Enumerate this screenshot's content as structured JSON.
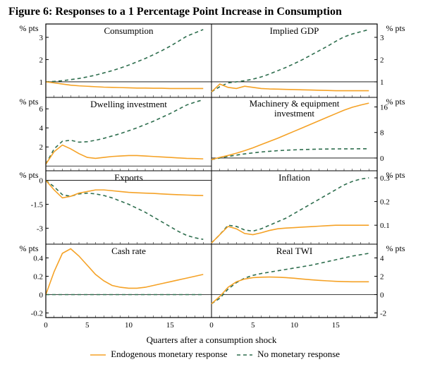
{
  "figure_title": "Figure 6: Responses to a 1 Percentage Point Increase in Consumption",
  "x_axis_label": "Quarters after a consumption shock",
  "x_ticks": [
    0,
    5,
    10,
    15
  ],
  "x_domain": [
    0,
    20
  ],
  "y_unit_left": "% pts",
  "y_unit_right": "% pts",
  "colors": {
    "endogenous": "#f5a226",
    "no_monetary": "#2e6e4e",
    "axis": "#000000",
    "panel_border": "#000000",
    "background": "#ffffff",
    "baseline": "#000000"
  },
  "line_style": {
    "endogenous": {
      "width": 1.6,
      "dash": ""
    },
    "no_monetary": {
      "width": 1.6,
      "dash": "5,4"
    }
  },
  "legend": {
    "endogenous": "Endogenous monetary response",
    "no_monetary": "No monetary response"
  },
  "panels": [
    {
      "title": "Consumption",
      "baseline": 1,
      "y_ticks": [
        1,
        2,
        3
      ],
      "y_domain": [
        0.3,
        3.6
      ],
      "y_side": "left",
      "series": {
        "endogenous": [
          1.0,
          0.95,
          0.9,
          0.85,
          0.82,
          0.8,
          0.78,
          0.76,
          0.75,
          0.74,
          0.73,
          0.72,
          0.72,
          0.71,
          0.71,
          0.7,
          0.7,
          0.7,
          0.7,
          0.7
        ],
        "no_monetary": [
          1.0,
          1.02,
          1.05,
          1.1,
          1.15,
          1.22,
          1.3,
          1.4,
          1.5,
          1.62,
          1.75,
          1.9,
          2.05,
          2.22,
          2.4,
          2.6,
          2.82,
          3.05,
          3.2,
          3.35
        ]
      }
    },
    {
      "title": "Implied GDP",
      "baseline": 1,
      "y_ticks": [
        1,
        2,
        3
      ],
      "y_domain": [
        0.3,
        3.6
      ],
      "y_side": "right",
      "series": {
        "endogenous": [
          0.55,
          0.9,
          0.75,
          0.7,
          0.8,
          0.75,
          0.7,
          0.68,
          0.67,
          0.66,
          0.65,
          0.64,
          0.63,
          0.62,
          0.61,
          0.6,
          0.6,
          0.6,
          0.6,
          0.6
        ],
        "no_monetary": [
          0.55,
          0.78,
          0.95,
          1.0,
          1.05,
          1.12,
          1.22,
          1.35,
          1.5,
          1.65,
          1.82,
          2.0,
          2.2,
          2.4,
          2.6,
          2.82,
          3.02,
          3.15,
          3.25,
          3.35
        ]
      }
    },
    {
      "title": "Dwelling investment",
      "baseline": 0,
      "y_ticks": [
        2,
        4,
        6
      ],
      "y_domain": [
        -0.5,
        7.2
      ],
      "y_side": "left",
      "series": {
        "endogenous": [
          0.2,
          1.5,
          2.2,
          1.8,
          1.3,
          0.9,
          0.8,
          0.9,
          1.0,
          1.05,
          1.1,
          1.1,
          1.05,
          1.0,
          0.95,
          0.9,
          0.85,
          0.8,
          0.78,
          0.75
        ],
        "no_monetary": [
          0.2,
          1.8,
          2.6,
          2.7,
          2.5,
          2.55,
          2.7,
          2.9,
          3.15,
          3.4,
          3.7,
          4.0,
          4.35,
          4.7,
          5.1,
          5.5,
          5.95,
          6.4,
          6.7,
          6.95
        ]
      }
    },
    {
      "title": "Machinery & equipment investment",
      "title2": "investment",
      "baseline": 0,
      "y_ticks": [
        0,
        8,
        16
      ],
      "y_domain": [
        -4,
        19
      ],
      "y_side": "right",
      "series": {
        "endogenous": [
          -0.5,
          0.2,
          0.8,
          1.5,
          2.3,
          3.2,
          4.2,
          5.2,
          6.2,
          7.3,
          8.4,
          9.5,
          10.6,
          11.7,
          12.8,
          13.9,
          15.0,
          15.9,
          16.6,
          17.2
        ],
        "no_monetary": [
          -0.5,
          0,
          0.5,
          0.9,
          1.3,
          1.6,
          1.9,
          2.1,
          2.3,
          2.45,
          2.55,
          2.65,
          2.72,
          2.78,
          2.82,
          2.85,
          2.87,
          2.88,
          2.89,
          2.9
        ]
      }
    },
    {
      "title": "Exports",
      "baseline": 0,
      "y_ticks": [
        -3.0,
        -1.5,
        0.0
      ],
      "y_domain": [
        -4.0,
        0.6
      ],
      "y_side": "left",
      "series": {
        "endogenous": [
          0,
          -0.6,
          -1.1,
          -1.0,
          -0.8,
          -0.7,
          -0.6,
          -0.6,
          -0.65,
          -0.7,
          -0.75,
          -0.78,
          -0.8,
          -0.82,
          -0.85,
          -0.88,
          -0.9,
          -0.92,
          -0.94,
          -0.95
        ],
        "no_monetary": [
          0,
          -0.4,
          -0.9,
          -1.0,
          -0.85,
          -0.8,
          -0.85,
          -0.95,
          -1.1,
          -1.3,
          -1.5,
          -1.75,
          -2.0,
          -2.3,
          -2.6,
          -2.9,
          -3.2,
          -3.45,
          -3.6,
          -3.7
        ]
      }
    },
    {
      "title": "Inflation",
      "baseline": null,
      "y_ticks": [
        0.1,
        0.2,
        0.3
      ],
      "y_domain": [
        0.02,
        0.33
      ],
      "y_side": "right",
      "series": {
        "endogenous": [
          0.025,
          0.06,
          0.095,
          0.085,
          0.065,
          0.06,
          0.068,
          0.078,
          0.085,
          0.088,
          0.09,
          0.092,
          0.094,
          0.096,
          0.098,
          0.1,
          0.1,
          0.1,
          0.1,
          0.1
        ],
        "no_monetary": [
          0.025,
          0.06,
          0.1,
          0.095,
          0.08,
          0.075,
          0.085,
          0.1,
          0.115,
          0.13,
          0.15,
          0.17,
          0.19,
          0.21,
          0.23,
          0.25,
          0.27,
          0.285,
          0.295,
          0.3
        ]
      }
    },
    {
      "title": "Cash rate",
      "baseline": 0,
      "y_ticks": [
        -0.2,
        0.0,
        0.2,
        0.4
      ],
      "y_domain": [
        -0.25,
        0.55
      ],
      "y_side": "left",
      "series": {
        "endogenous": [
          0.0,
          0.25,
          0.45,
          0.5,
          0.42,
          0.32,
          0.22,
          0.15,
          0.1,
          0.08,
          0.07,
          0.07,
          0.08,
          0.1,
          0.12,
          0.14,
          0.16,
          0.18,
          0.2,
          0.22
        ],
        "no_monetary": [
          0,
          0,
          0,
          0,
          0,
          0,
          0,
          0,
          0,
          0,
          0,
          0,
          0,
          0,
          0,
          0,
          0,
          0,
          0,
          0
        ]
      }
    },
    {
      "title": "Real TWI",
      "baseline": 0,
      "y_ticks": [
        -2,
        0,
        2,
        4
      ],
      "y_domain": [
        -2.5,
        5.5
      ],
      "y_side": "right",
      "series": {
        "endogenous": [
          -1.0,
          -0.2,
          0.8,
          1.4,
          1.7,
          1.85,
          1.9,
          1.92,
          1.9,
          1.85,
          1.78,
          1.7,
          1.62,
          1.55,
          1.5,
          1.45,
          1.42,
          1.4,
          1.4,
          1.4
        ],
        "no_monetary": [
          -1.0,
          -0.4,
          0.6,
          1.3,
          1.8,
          2.1,
          2.3,
          2.45,
          2.6,
          2.75,
          2.9,
          3.05,
          3.2,
          3.4,
          3.6,
          3.8,
          4.0,
          4.2,
          4.35,
          4.5
        ]
      }
    }
  ]
}
